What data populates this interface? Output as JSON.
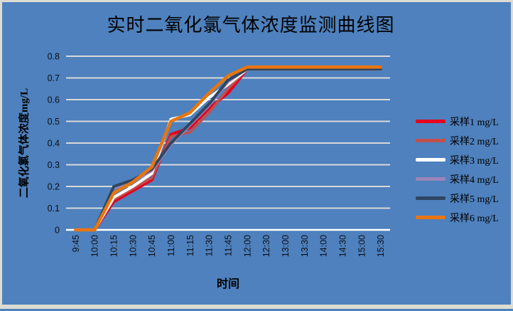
{
  "chart_data": {
    "type": "line",
    "title": "实时二氧化氯气体浓度监测曲线图",
    "xlabel": "时间",
    "ylabel": "二氧化氯气体浓度mg/L",
    "categories": [
      "9:45",
      "10:00",
      "10:15",
      "10:30",
      "10:45",
      "11:00",
      "11:15",
      "11:30",
      "11:45",
      "12:00",
      "12:30",
      "13:00",
      "13:30",
      "14:00",
      "14:30",
      "15:00",
      "15:30"
    ],
    "y_ticks": [
      0,
      0.1,
      0.2,
      0.3,
      0.4,
      0.5,
      0.6,
      0.7,
      0.8
    ],
    "ylim": [
      0,
      0.8
    ],
    "grid": true,
    "legend_position": "right",
    "colors": {
      "background": "#4e81bd",
      "gridline": "#d9d9d9",
      "axis_line": "#ffffff",
      "text": "#000000"
    },
    "series": [
      {
        "name": "采样1 mg/L",
        "color": "#e6001e",
        "width": 4,
        "values": [
          0,
          0,
          0.13,
          0.18,
          0.23,
          0.44,
          0.47,
          0.56,
          0.63,
          0.74,
          0.74,
          0.74,
          0.74,
          0.74,
          0.74,
          0.74,
          0.74
        ]
      },
      {
        "name": "采样2 mg/L",
        "color": "#c0504d",
        "width": 3.5,
        "values": [
          0,
          0,
          0.14,
          0.19,
          0.24,
          0.43,
          0.45,
          0.54,
          0.65,
          0.74,
          0.74,
          0.74,
          0.74,
          0.74,
          0.74,
          0.74,
          0.74
        ]
      },
      {
        "name": "采样3 mg/L",
        "color": "#ffffff",
        "width": 4,
        "values": [
          0,
          0,
          0.15,
          0.2,
          0.26,
          0.51,
          0.53,
          0.61,
          0.67,
          0.74,
          0.74,
          0.74,
          0.74,
          0.74,
          0.74,
          0.74,
          0.74
        ]
      },
      {
        "name": "采样4 mg/L",
        "color": "#9c84b8",
        "width": 2.5,
        "values": [
          0,
          0,
          0.19,
          0.22,
          0.27,
          0.39,
          0.48,
          0.57,
          0.68,
          0.74,
          0.74,
          0.74,
          0.74,
          0.74,
          0.74,
          0.74,
          0.74
        ]
      },
      {
        "name": "采样5 mg/L",
        "color": "#2e4662",
        "width": 4,
        "values": [
          0,
          0,
          0.2,
          0.23,
          0.28,
          0.4,
          0.49,
          0.58,
          0.69,
          0.74,
          0.74,
          0.74,
          0.74,
          0.74,
          0.74,
          0.74,
          0.74
        ]
      },
      {
        "name": "采样6 mg/L",
        "color": "#e9750e",
        "width": 4.5,
        "values": [
          0,
          0,
          0.17,
          0.22,
          0.29,
          0.5,
          0.54,
          0.63,
          0.71,
          0.75,
          0.75,
          0.75,
          0.75,
          0.75,
          0.75,
          0.75,
          0.75
        ]
      }
    ]
  }
}
